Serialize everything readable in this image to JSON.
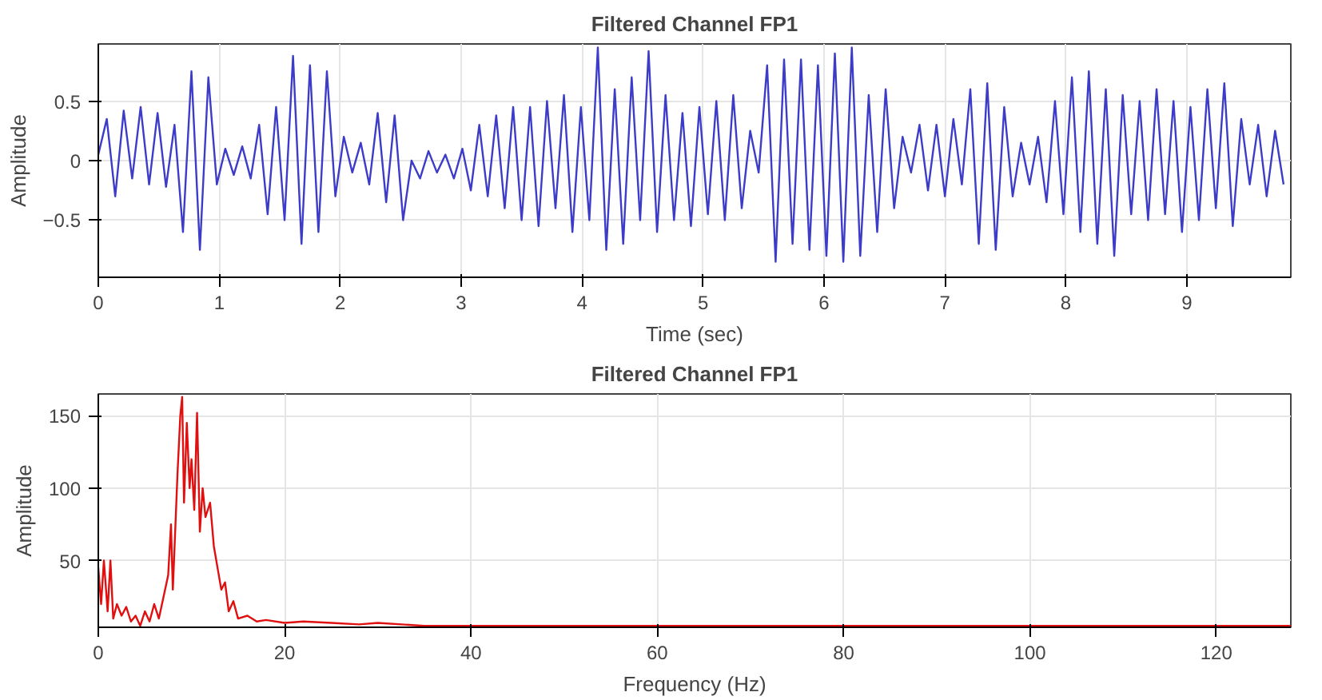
{
  "chart_data": [
    {
      "type": "line",
      "title": "Filtered Channel FP1",
      "xlabel": "Time (sec)",
      "ylabel": "Amplitude",
      "x": [
        0,
        0.07,
        0.14,
        0.21,
        0.28,
        0.35,
        0.42,
        0.49,
        0.56,
        0.63,
        0.7,
        0.77,
        0.84,
        0.91,
        0.98,
        1.05,
        1.12,
        1.19,
        1.26,
        1.33,
        1.4,
        1.47,
        1.54,
        1.61,
        1.68,
        1.75,
        1.82,
        1.89,
        1.96,
        2.03,
        2.1,
        2.17,
        2.24,
        2.31,
        2.38,
        2.45,
        2.52,
        2.59,
        2.66,
        2.73,
        2.8,
        2.87,
        2.94,
        3.01,
        3.08,
        3.15,
        3.22,
        3.29,
        3.36,
        3.43,
        3.5,
        3.57,
        3.64,
        3.71,
        3.78,
        3.85,
        3.92,
        3.99,
        4.06,
        4.13,
        4.2,
        4.27,
        4.34,
        4.41,
        4.48,
        4.55,
        4.62,
        4.69,
        4.76,
        4.83,
        4.9,
        4.97,
        5.04,
        5.11,
        5.18,
        5.25,
        5.32,
        5.39,
        5.46,
        5.53,
        5.6,
        5.67,
        5.74,
        5.81,
        5.88,
        5.95,
        6.02,
        6.09,
        6.16,
        6.23,
        6.3,
        6.37,
        6.44,
        6.51,
        6.58,
        6.65,
        6.72,
        6.79,
        6.86,
        6.93,
        7.0,
        7.07,
        7.14,
        7.21,
        7.28,
        7.35,
        7.42,
        7.49,
        7.56,
        7.63,
        7.7,
        7.77,
        7.84,
        7.91,
        7.98,
        8.05,
        8.12,
        8.19,
        8.26,
        8.33,
        8.4,
        8.47,
        8.54,
        8.61,
        8.68,
        8.75,
        8.82,
        8.89,
        8.96,
        9.03,
        9.1,
        9.17,
        9.24,
        9.31,
        9.38,
        9.45,
        9.52,
        9.59,
        9.66,
        9.73,
        9.8
      ],
      "series": [
        {
          "color": "#3c3cc8",
          "values": [
            0.05,
            0.35,
            -0.3,
            0.42,
            -0.15,
            0.45,
            -0.2,
            0.4,
            -0.22,
            0.3,
            -0.6,
            0.75,
            -0.75,
            0.7,
            -0.2,
            0.1,
            -0.12,
            0.12,
            -0.15,
            0.3,
            -0.45,
            0.45,
            -0.5,
            0.88,
            -0.7,
            0.8,
            -0.6,
            0.75,
            -0.3,
            0.2,
            -0.1,
            0.15,
            -0.2,
            0.4,
            -0.35,
            0.38,
            -0.5,
            0.0,
            -0.15,
            0.08,
            -0.1,
            0.05,
            -0.15,
            0.1,
            -0.25,
            0.3,
            -0.3,
            0.38,
            -0.4,
            0.45,
            -0.5,
            0.45,
            -0.55,
            0.5,
            -0.4,
            0.55,
            -0.6,
            0.45,
            -0.5,
            0.95,
            -0.75,
            0.6,
            -0.7,
            0.7,
            -0.5,
            0.92,
            -0.6,
            0.55,
            -0.5,
            0.4,
            -0.55,
            0.45,
            -0.45,
            0.5,
            -0.5,
            0.55,
            -0.4,
            0.25,
            -0.1,
            0.8,
            -0.85,
            0.85,
            -0.7,
            0.85,
            -0.75,
            0.8,
            -0.8,
            0.9,
            -0.85,
            0.95,
            -0.8,
            0.55,
            -0.6,
            0.6,
            -0.4,
            0.2,
            -0.1,
            0.3,
            -0.25,
            0.3,
            -0.3,
            0.35,
            -0.2,
            0.6,
            -0.7,
            0.65,
            -0.75,
            0.45,
            -0.3,
            0.15,
            -0.2,
            0.2,
            -0.35,
            0.5,
            -0.45,
            0.7,
            -0.6,
            0.75,
            -0.7,
            0.6,
            -0.8,
            0.55,
            -0.45,
            0.5,
            -0.5,
            0.6,
            -0.45,
            0.5,
            -0.6,
            0.45,
            -0.5,
            0.6,
            -0.4,
            0.65,
            -0.55,
            0.35,
            -0.2,
            0.3,
            -0.3,
            0.25,
            -0.2
          ]
        }
      ],
      "xlim": [
        0,
        9.86
      ],
      "ylim": [
        -0.98,
        0.98
      ],
      "xticks": [
        0,
        1,
        2,
        3,
        4,
        5,
        6,
        7,
        8,
        9
      ],
      "yticks": [
        -0.5,
        0,
        0.5
      ],
      "grid": true
    },
    {
      "type": "line",
      "title": "Filtered Channel FP1",
      "xlabel": "Frequency (Hz)",
      "ylabel": "Amplitude",
      "x": [
        0,
        0.3,
        0.6,
        1,
        1.3,
        1.6,
        2,
        2.5,
        3,
        3.5,
        4,
        4.5,
        5,
        5.5,
        6,
        6.5,
        7,
        7.5,
        7.8,
        8,
        8.5,
        8.8,
        9,
        9.2,
        9.5,
        9.8,
        10,
        10.3,
        10.6,
        10.9,
        11.2,
        11.5,
        12,
        12.4,
        12.8,
        13.2,
        13.6,
        14,
        14.5,
        15,
        16,
        17,
        18,
        20,
        22,
        25,
        28,
        30,
        35,
        40,
        45,
        50,
        60,
        80,
        100,
        128
      ],
      "series": [
        {
          "color": "#e01010",
          "values": [
            45,
            20,
            50,
            15,
            50,
            10,
            20,
            12,
            18,
            8,
            12,
            5,
            15,
            8,
            20,
            10,
            25,
            40,
            75,
            30,
            110,
            150,
            163,
            90,
            145,
            100,
            120,
            85,
            152,
            70,
            100,
            80,
            90,
            60,
            45,
            30,
            35,
            15,
            22,
            10,
            12,
            8,
            9,
            7,
            8,
            7,
            6,
            7,
            5,
            5,
            5,
            5,
            5,
            5,
            5,
            5
          ]
        }
      ],
      "xlim": [
        0,
        128
      ],
      "ylim": [
        4,
        165
      ],
      "xticks": [
        0,
        20,
        40,
        60,
        80,
        100,
        120
      ],
      "yticks": [
        50,
        100,
        150
      ],
      "grid": true
    }
  ]
}
